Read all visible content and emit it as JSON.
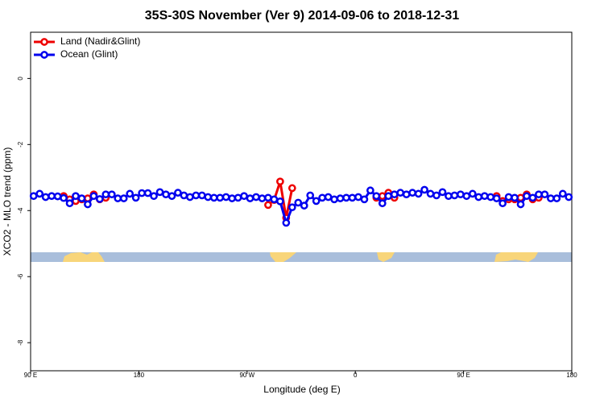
{
  "chart_data": {
    "type": "line",
    "title": "35S-30S November (Ver 9)   2014-09-06 to 2018-12-31",
    "x_label": "Longitude (deg E)",
    "y_label": "XCO2 - MLO trend (ppm)",
    "xlim": [
      90,
      540
    ],
    "ylim": [
      -8.85,
      1.4
    ],
    "xticks": [
      {
        "value": 90,
        "label": "90 E"
      },
      {
        "value": 180,
        "label": "180"
      },
      {
        "value": 270,
        "label": "90 W"
      },
      {
        "value": 360,
        "label": "0"
      },
      {
        "value": 450,
        "label": "90 E"
      },
      {
        "value": 540,
        "label": "180"
      }
    ],
    "yticks": [
      0,
      -2,
      -4,
      -6,
      -8
    ],
    "legend": "top-left",
    "x": [
      92.5,
      97.5,
      102.5,
      107.5,
      112.5,
      117.5,
      122.5,
      127.5,
      132.5,
      137.5,
      142.5,
      147.5,
      152.5,
      157.5,
      162.5,
      167.5,
      172.5,
      177.5,
      182.5,
      187.5,
      192.5,
      197.5,
      202.5,
      207.5,
      212.5,
      217.5,
      222.5,
      227.5,
      232.5,
      237.5,
      242.5,
      247.5,
      252.5,
      257.5,
      262.5,
      267.5,
      272.5,
      277.5,
      282.5,
      287.5,
      292.5,
      297.5,
      302.5,
      307.5,
      312.5,
      317.5,
      322.5,
      327.5,
      332.5,
      337.5,
      342.5,
      347.5,
      352.5,
      357.5,
      362.5,
      367.5,
      372.5,
      377.5,
      382.5,
      387.5,
      392.5,
      397.5,
      402.5,
      407.5,
      412.5,
      417.5,
      422.5,
      427.5,
      432.5,
      437.5,
      442.5,
      447.5,
      452.5,
      457.5,
      462.5,
      467.5,
      472.5,
      477.5,
      482.5,
      487.5,
      492.5,
      497.5,
      502.5,
      507.5,
      512.5,
      517.5,
      522.5,
      527.5,
      532.5,
      537.5
    ],
    "series": [
      {
        "name": "Land (Nadir&Glint)",
        "color": "#ee0000",
        "values": [
          null,
          null,
          null,
          null,
          null,
          -3.56,
          -3.66,
          -3.71,
          -3.66,
          -3.63,
          -3.51,
          -3.66,
          -3.61,
          null,
          null,
          null,
          null,
          null,
          null,
          null,
          null,
          null,
          null,
          null,
          null,
          null,
          null,
          null,
          null,
          null,
          null,
          null,
          null,
          null,
          null,
          null,
          null,
          null,
          null,
          -3.83,
          -3.68,
          -3.12,
          -4.22,
          -3.32,
          null,
          null,
          null,
          null,
          null,
          null,
          null,
          null,
          null,
          null,
          null,
          null,
          null,
          -3.61,
          -3.56,
          -3.46,
          -3.61,
          null,
          null,
          null,
          null,
          null,
          null,
          null,
          null,
          null,
          null,
          null,
          null,
          null,
          null,
          null,
          null,
          -3.56,
          -3.71,
          -3.66,
          -3.66,
          -3.61,
          -3.51,
          -3.66,
          -3.61,
          null,
          null,
          null,
          null,
          null
        ]
      },
      {
        "name": "Ocean (Glint)",
        "color": "#0000ee",
        "values": [
          -3.56,
          -3.49,
          -3.59,
          -3.56,
          -3.57,
          -3.62,
          -3.78,
          -3.56,
          -3.63,
          -3.81,
          -3.56,
          -3.65,
          -3.51,
          -3.51,
          -3.63,
          -3.63,
          -3.49,
          -3.61,
          -3.47,
          -3.47,
          -3.56,
          -3.44,
          -3.51,
          -3.56,
          -3.46,
          -3.54,
          -3.59,
          -3.54,
          -3.54,
          -3.59,
          -3.61,
          -3.61,
          -3.59,
          -3.63,
          -3.61,
          -3.56,
          -3.63,
          -3.59,
          -3.63,
          -3.61,
          -3.66,
          -3.72,
          -4.37,
          -3.9,
          -3.76,
          -3.85,
          -3.54,
          -3.71,
          -3.61,
          -3.59,
          -3.66,
          -3.63,
          -3.61,
          -3.61,
          -3.59,
          -3.66,
          -3.39,
          -3.56,
          -3.78,
          -3.56,
          -3.51,
          -3.46,
          -3.51,
          -3.46,
          -3.49,
          -3.37,
          -3.49,
          -3.54,
          -3.44,
          -3.56,
          -3.54,
          -3.51,
          -3.56,
          -3.49,
          -3.59,
          -3.56,
          -3.59,
          -3.63,
          -3.78,
          -3.59,
          -3.61,
          -3.81,
          -3.56,
          -3.61,
          -3.51,
          -3.51,
          -3.63,
          -3.63,
          -3.49,
          -3.59
        ]
      }
    ]
  }
}
